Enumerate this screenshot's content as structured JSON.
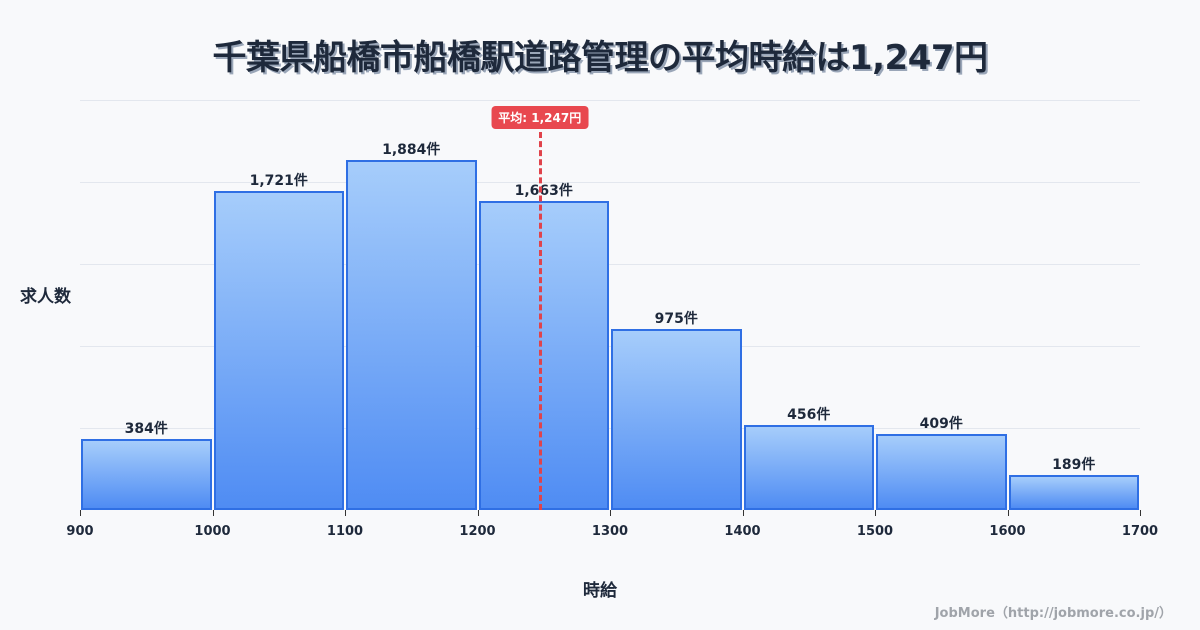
{
  "title": "千葉県船橋市船橋駅道路管理の平均時給は1,247円",
  "ylabel": "求人数",
  "xlabel": "時給",
  "credit": "JobMore（http://jobmore.co.jp/）",
  "mean_badge": "平均: 1,247円",
  "colors": {
    "bar_top": "#a6cdfb",
    "bar_bottom": "#4f8cf3",
    "bar_border": "#2f6fe4",
    "mean": "#e8484f",
    "title": "#1e293b"
  },
  "chart_data": {
    "type": "bar",
    "title": "千葉県船橋市船橋駅道路管理の平均時給は1,247円",
    "xlabel": "時給",
    "ylabel": "求人数",
    "bins": [
      [
        900,
        1000
      ],
      [
        1000,
        1100
      ],
      [
        1100,
        1200
      ],
      [
        1200,
        1300
      ],
      [
        1300,
        1400
      ],
      [
        1400,
        1500
      ],
      [
        1500,
        1600
      ],
      [
        1600,
        1700
      ]
    ],
    "categories": [
      "900-1000",
      "1000-1100",
      "1100-1200",
      "1200-1300",
      "1300-1400",
      "1400-1500",
      "1500-1600",
      "1600-1700"
    ],
    "values": [
      384,
      1721,
      1884,
      1663,
      975,
      456,
      409,
      189
    ],
    "value_labels": [
      "384件",
      "1,721件",
      "1,884件",
      "1,663件",
      "975件",
      "456件",
      "409件",
      "189件"
    ],
    "x_ticks": [
      "900",
      "1000",
      "1100",
      "1200",
      "1300",
      "1400",
      "1500",
      "1600",
      "1700"
    ],
    "xlim": [
      900,
      1700
    ],
    "ylim": [
      0,
      2210
    ],
    "mean": 1247,
    "mean_label": "平均: 1,247円",
    "grid": true,
    "legend": null
  }
}
